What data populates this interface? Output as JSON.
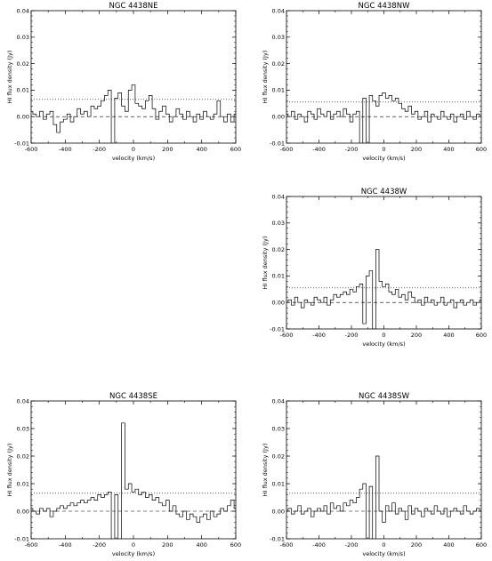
{
  "chart_data": [
    {
      "type": "line",
      "title": "NGC 4438NE",
      "xlabel": "velocity (km/s)",
      "ylabel": "HI flux density (Jy)",
      "xlim": [
        -600,
        600
      ],
      "ylim": [
        -0.01,
        0.04
      ],
      "xticks": [
        -600,
        -400,
        -200,
        0,
        200,
        400,
        600
      ],
      "yticks": [
        -0.01,
        0.0,
        0.01,
        0.02,
        0.03,
        0.04
      ],
      "xtick_labels": [
        "-600",
        "-400",
        "-200",
        "0",
        "200",
        "400",
        "600"
      ],
      "ytick_labels": [
        "-0.01",
        "0.00",
        "0.01",
        "0.02",
        "0.03",
        "0.04"
      ],
      "reference_lines": {
        "dashed": 0.0,
        "dotted": 0.0065
      },
      "x": [
        -600,
        -580,
        -560,
        -540,
        -520,
        -500,
        -480,
        -460,
        -440,
        -420,
        -400,
        -380,
        -360,
        -340,
        -320,
        -300,
        -280,
        -260,
        -240,
        -220,
        -200,
        -180,
        -160,
        -140,
        -120,
        -100,
        -80,
        -60,
        -40,
        -20,
        0,
        20,
        40,
        60,
        80,
        100,
        120,
        140,
        160,
        180,
        200,
        220,
        240,
        260,
        280,
        300,
        320,
        340,
        360,
        380,
        400,
        420,
        440,
        460,
        480,
        500,
        520,
        540,
        560,
        580,
        600
      ],
      "values": [
        0.002,
        0.001,
        0.0,
        0.002,
        -0.001,
        0.001,
        0.002,
        -0.003,
        -0.006,
        -0.002,
        -0.001,
        0.001,
        -0.002,
        0.0,
        0.003,
        0.001,
        0.002,
        0.0,
        0.004,
        0.003,
        0.004,
        0.006,
        0.008,
        0.01,
        -0.012,
        0.007,
        0.009,
        0.004,
        0.002,
        0.01,
        0.012,
        0.005,
        0.004,
        0.003,
        0.006,
        0.008,
        0.003,
        -0.001,
        0.002,
        0.004,
        0.001,
        -0.002,
        0.0,
        0.003,
        0.001,
        -0.001,
        0.002,
        0.0,
        -0.002,
        0.001,
        -0.001,
        0.002,
        0.0,
        -0.001,
        0.001,
        0.006,
        0.0,
        -0.002,
        0.001,
        -0.002,
        0.001
      ]
    },
    {
      "type": "line",
      "title": "NGC 4438NW",
      "xlabel": "velocity (km/s)",
      "ylabel": "HI flux density (Jy)",
      "xlim": [
        -600,
        600
      ],
      "ylim": [
        -0.01,
        0.04
      ],
      "xticks": [
        -600,
        -400,
        -200,
        0,
        200,
        400,
        600
      ],
      "yticks": [
        -0.01,
        0.0,
        0.01,
        0.02,
        0.03,
        0.04
      ],
      "xtick_labels": [
        "-600",
        "-400",
        "-200",
        "0",
        "200",
        "400",
        "600"
      ],
      "ytick_labels": [
        "-0.01",
        "0.00",
        "0.01",
        "0.02",
        "0.03",
        "0.04"
      ],
      "reference_lines": {
        "dashed": 0.0,
        "dotted": 0.0055
      },
      "x": [
        -600,
        -580,
        -560,
        -540,
        -520,
        -500,
        -480,
        -460,
        -440,
        -420,
        -400,
        -380,
        -360,
        -340,
        -320,
        -300,
        -280,
        -260,
        -240,
        -220,
        -200,
        -180,
        -160,
        -140,
        -120,
        -100,
        -80,
        -60,
        -40,
        -20,
        0,
        20,
        40,
        60,
        80,
        100,
        120,
        140,
        160,
        180,
        200,
        220,
        240,
        260,
        280,
        300,
        320,
        340,
        360,
        380,
        400,
        420,
        440,
        460,
        480,
        500,
        520,
        540,
        560,
        580,
        600
      ],
      "values": [
        0.001,
        0.0,
        0.002,
        -0.001,
        0.001,
        0.0,
        -0.002,
        0.002,
        0.001,
        -0.001,
        0.003,
        0.001,
        0.0,
        0.002,
        -0.001,
        0.001,
        0.002,
        0.0,
        0.003,
        0.001,
        -0.002,
        0.001,
        0.002,
        -0.012,
        0.007,
        -0.012,
        0.008,
        0.006,
        0.004,
        0.008,
        0.009,
        0.007,
        0.008,
        0.006,
        0.007,
        0.005,
        0.003,
        0.002,
        0.004,
        0.001,
        0.002,
        -0.001,
        0.0,
        0.002,
        -0.002,
        0.001,
        0.0,
        -0.001,
        0.002,
        0.0,
        -0.001,
        0.001,
        -0.002,
        0.0,
        0.001,
        -0.001,
        0.002,
        0.0,
        -0.001,
        0.001,
        0.0
      ]
    },
    {
      "type": "line",
      "title": "NGC 4438W",
      "xlabel": "velocity (km/s)",
      "ylabel": "HI flux density (Jy)",
      "xlim": [
        -600,
        600
      ],
      "ylim": [
        -0.01,
        0.04
      ],
      "xticks": [
        -600,
        -400,
        -200,
        0,
        200,
        400,
        600
      ],
      "yticks": [
        -0.01,
        0.0,
        0.01,
        0.02,
        0.03,
        0.04
      ],
      "xtick_labels": [
        "-600",
        "-400",
        "-200",
        "0",
        "200",
        "400",
        "600"
      ],
      "ytick_labels": [
        "-0.01",
        "0.00",
        "0.01",
        "0.02",
        "0.03",
        "0.04"
      ],
      "reference_lines": {
        "dashed": 0.0,
        "dotted": 0.0055
      },
      "x": [
        -600,
        -580,
        -560,
        -540,
        -520,
        -500,
        -480,
        -460,
        -440,
        -420,
        -400,
        -380,
        -360,
        -340,
        -320,
        -300,
        -280,
        -260,
        -240,
        -220,
        -200,
        -180,
        -160,
        -140,
        -120,
        -100,
        -80,
        -60,
        -40,
        -20,
        0,
        20,
        40,
        60,
        80,
        100,
        120,
        140,
        160,
        180,
        200,
        220,
        240,
        260,
        280,
        300,
        320,
        340,
        360,
        380,
        400,
        420,
        440,
        460,
        480,
        500,
        520,
        540,
        560,
        580,
        600
      ],
      "values": [
        0.0,
        0.001,
        -0.001,
        0.002,
        0.0,
        -0.002,
        0.001,
        0.0,
        -0.001,
        0.002,
        0.001,
        0.0,
        0.002,
        -0.001,
        0.001,
        0.003,
        0.002,
        0.003,
        0.004,
        0.003,
        0.005,
        0.004,
        0.006,
        0.007,
        -0.008,
        0.01,
        0.012,
        -0.01,
        0.02,
        0.008,
        0.006,
        0.007,
        0.004,
        0.003,
        0.005,
        0.002,
        0.003,
        0.001,
        0.004,
        0.002,
        0.0,
        0.001,
        -0.001,
        0.002,
        0.0,
        0.001,
        -0.001,
        0.0,
        0.002,
        -0.001,
        0.0,
        0.001,
        -0.002,
        0.0,
        0.001,
        -0.001,
        0.0,
        0.001,
        -0.001,
        0.0,
        0.001
      ]
    },
    {
      "type": "line",
      "title": "NGC 4438SE",
      "xlabel": "velocity (km/s)",
      "ylabel": "HI flux density (Jy)",
      "xlim": [
        -600,
        600
      ],
      "ylim": [
        -0.01,
        0.04
      ],
      "xticks": [
        -600,
        -400,
        -200,
        0,
        200,
        400,
        600
      ],
      "yticks": [
        -0.01,
        0.0,
        0.01,
        0.02,
        0.03,
        0.04
      ],
      "xtick_labels": [
        "-600",
        "-400",
        "-200",
        "0",
        "200",
        "400",
        "600"
      ],
      "ytick_labels": [
        "-0.01",
        "0.00",
        "0.01",
        "0.02",
        "0.03",
        "0.04"
      ],
      "reference_lines": {
        "dashed": 0.0,
        "dotted": 0.0065
      },
      "x": [
        -600,
        -580,
        -560,
        -540,
        -520,
        -500,
        -480,
        -460,
        -440,
        -420,
        -400,
        -380,
        -360,
        -340,
        -320,
        -300,
        -280,
        -260,
        -240,
        -220,
        -200,
        -180,
        -160,
        -140,
        -120,
        -100,
        -80,
        -60,
        -40,
        -20,
        0,
        20,
        40,
        60,
        80,
        100,
        120,
        140,
        160,
        180,
        200,
        220,
        240,
        260,
        280,
        300,
        320,
        340,
        360,
        380,
        400,
        420,
        440,
        460,
        480,
        500,
        520,
        540,
        560,
        580,
        600
      ],
      "values": [
        0.001,
        0.0,
        -0.001,
        0.001,
        0.0,
        0.001,
        -0.002,
        0.0,
        0.001,
        0.002,
        0.001,
        0.002,
        0.003,
        0.002,
        0.003,
        0.004,
        0.003,
        0.004,
        0.005,
        0.004,
        0.006,
        0.005,
        0.006,
        0.007,
        -0.012,
        0.006,
        -0.012,
        0.032,
        0.008,
        0.01,
        0.007,
        0.008,
        0.006,
        0.007,
        0.005,
        0.006,
        0.004,
        0.005,
        0.003,
        0.002,
        0.004,
        0.0,
        0.002,
        -0.001,
        -0.002,
        0.0,
        -0.003,
        -0.001,
        -0.002,
        -0.004,
        -0.002,
        -0.001,
        -0.003,
        0.0,
        -0.002,
        -0.001,
        0.001,
        0.0,
        0.002,
        0.004,
        0.001
      ]
    },
    {
      "type": "line",
      "title": "NGC 4438SW",
      "xlabel": "velocity (km/s)",
      "ylabel": "HI flux density (Jy)",
      "xlim": [
        -600,
        600
      ],
      "ylim": [
        -0.01,
        0.04
      ],
      "xticks": [
        -600,
        -400,
        -200,
        0,
        200,
        400,
        600
      ],
      "yticks": [
        -0.01,
        0.0,
        0.01,
        0.02,
        0.03,
        0.04
      ],
      "xtick_labels": [
        "-600",
        "-400",
        "-200",
        "0",
        "200",
        "400",
        "600"
      ],
      "ytick_labels": [
        "-0.01",
        "0.00",
        "0.01",
        "0.02",
        "0.03",
        "0.04"
      ],
      "reference_lines": {
        "dashed": 0.0,
        "dotted": 0.0065
      },
      "x": [
        -600,
        -580,
        -560,
        -540,
        -520,
        -500,
        -480,
        -460,
        -440,
        -420,
        -400,
        -380,
        -360,
        -340,
        -320,
        -300,
        -280,
        -260,
        -240,
        -220,
        -200,
        -180,
        -160,
        -140,
        -120,
        -100,
        -80,
        -60,
        -40,
        -20,
        0,
        20,
        40,
        60,
        80,
        100,
        120,
        140,
        160,
        180,
        200,
        220,
        240,
        260,
        280,
        300,
        320,
        340,
        360,
        380,
        400,
        420,
        440,
        460,
        480,
        500,
        520,
        540,
        560,
        580,
        600
      ],
      "values": [
        0.0,
        0.001,
        -0.001,
        0.0,
        0.002,
        -0.001,
        0.0,
        0.001,
        -0.002,
        0.0,
        0.001,
        0.0,
        0.002,
        -0.001,
        0.003,
        0.001,
        0.002,
        0.0,
        0.003,
        0.002,
        0.004,
        0.003,
        0.005,
        0.008,
        0.01,
        -0.012,
        0.009,
        -0.012,
        0.02,
        0.0,
        -0.004,
        0.002,
        0.0,
        0.003,
        -0.001,
        0.001,
        0.0,
        -0.003,
        0.002,
        -0.001,
        0.001,
        0.0,
        -0.002,
        0.001,
        0.0,
        -0.001,
        0.002,
        0.0,
        -0.001,
        0.001,
        -0.002,
        0.0,
        0.001,
        0.0,
        -0.001,
        0.002,
        0.0,
        -0.001,
        0.0,
        0.001,
        0.0
      ]
    }
  ]
}
